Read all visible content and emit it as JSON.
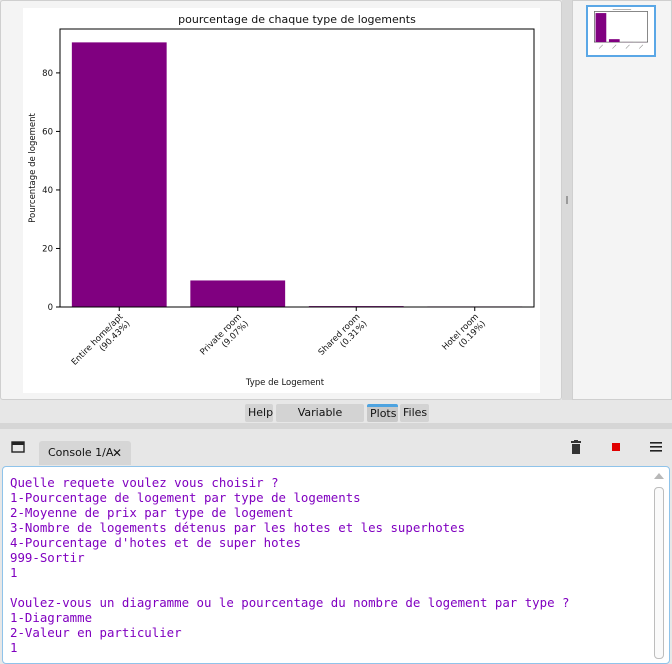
{
  "tabs": [
    "Help",
    "Variable Explorer",
    "Plots",
    "Files"
  ],
  "console": {
    "tab_label": "Console 1/A",
    "close_glyph": "✕",
    "output": "Quelle requete voulez vous choisir ?\n1-Pourcentage de logement par type de logements\n2-Moyenne de prix par type de logement\n3-Nombre de logements détenus par les hotes et les superhotes\n4-Pourcentage d'hotes et de super hotes\n999-Sortir\n1\n\nVoulez-vous un diagramme ou le pourcentage du nombre de logement par type ?\n1-Diagramme\n2-Valeur en particulier\n1"
  },
  "icons": {
    "undock": "window-icon",
    "remove": "trash-icon",
    "stop": "stop-icon",
    "menu": "hamburger-menu-icon"
  },
  "colors": {
    "bar": "#800080",
    "stop": "#e00000",
    "accent": "#4da3e0"
  },
  "chart_data": {
    "type": "bar",
    "title": "pourcentage de chaque type de logements",
    "xlabel": "Type de Logement",
    "ylabel": "Pourcentage de logement",
    "categories": [
      [
        "Entire home/apt",
        "(90.43%)"
      ],
      [
        "Private room",
        "(9.07%)"
      ],
      [
        "Shared room",
        "(0.31%)"
      ],
      [
        "Hotel room",
        "(0.19%)"
      ]
    ],
    "values": [
      90.43,
      9.07,
      0.31,
      0.19
    ],
    "yticks": [
      0,
      20,
      40,
      60,
      80
    ],
    "ylim": [
      0,
      95
    ],
    "grid": false,
    "legend": "none"
  }
}
